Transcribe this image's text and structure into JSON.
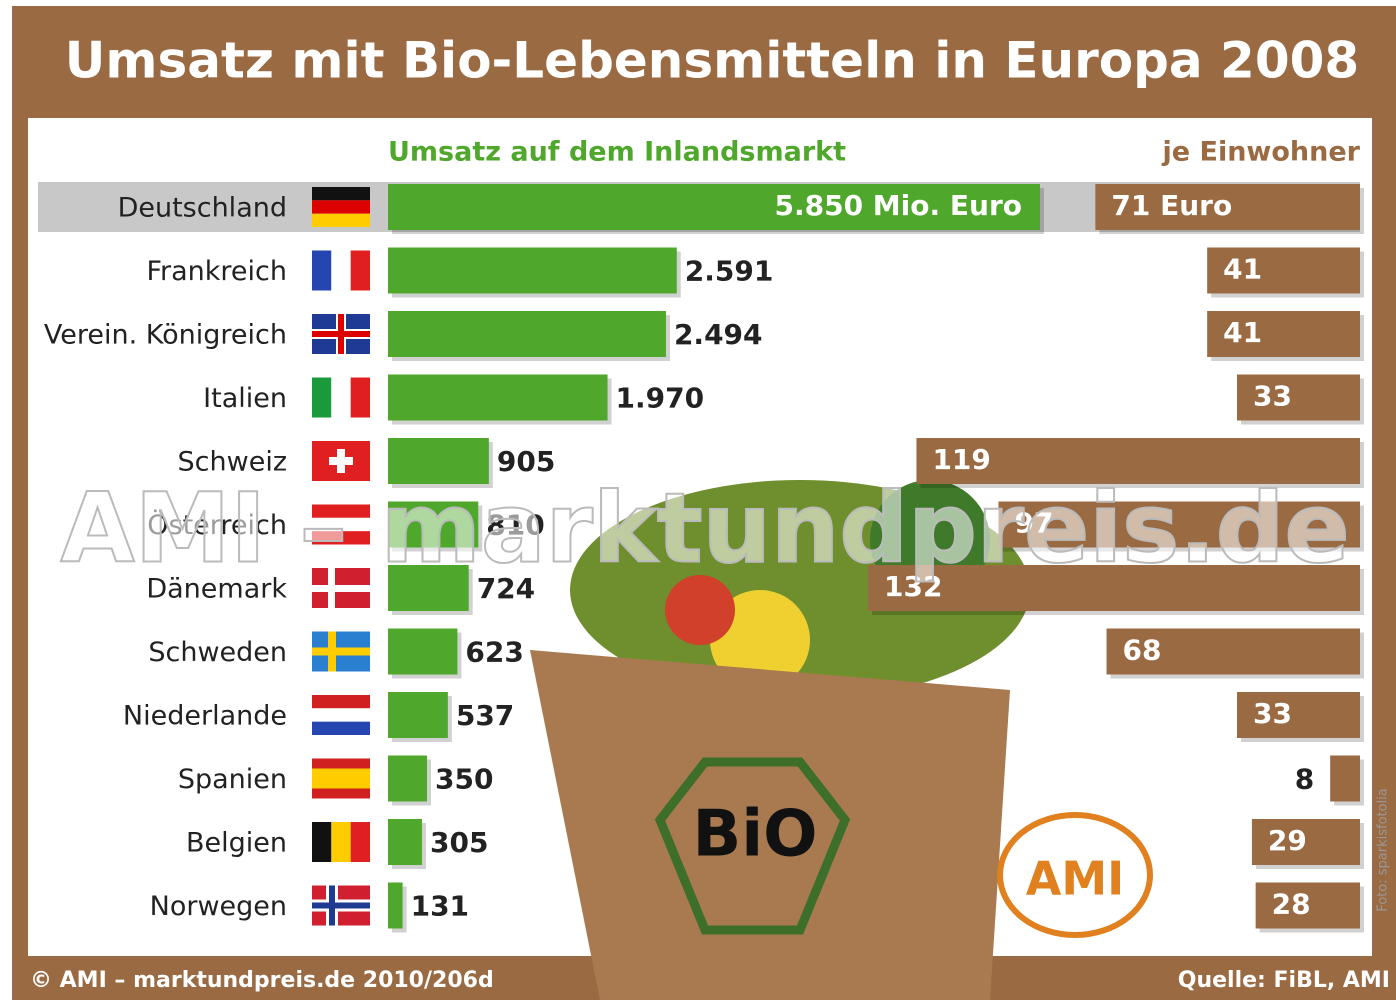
{
  "title": "Umsatz mit Bio-Lebensmitteln in Europa 2008",
  "chart_data": {
    "type": "bar",
    "categories": [
      "Deutschland",
      "Frankreich",
      "Verein. Königreich",
      "Italien",
      "Schweiz",
      "Österreich",
      "Dänemark",
      "Schweden",
      "Niederlande",
      "Spanien",
      "Belgien",
      "Norwegen"
    ],
    "series": [
      {
        "name": "Umsatz auf dem Inlandsmarkt",
        "color": "#4fa82b",
        "values": [
          5850,
          2591,
          2494,
          1970,
          905,
          810,
          724,
          623,
          537,
          350,
          305,
          131
        ],
        "value_labels": [
          "5.850 Mio. Euro",
          "2.591",
          "2.494",
          "1.970",
          "905",
          "810",
          "724",
          "623",
          "537",
          "350",
          "305",
          "131"
        ]
      },
      {
        "name": "je Einwohner",
        "color": "#9a6a42",
        "values": [
          71,
          41,
          41,
          33,
          119,
          97,
          132,
          68,
          33,
          8,
          29,
          28
        ],
        "value_labels": [
          "71 Euro",
          "41",
          "41",
          "33",
          "119",
          "97",
          "132",
          "68",
          "33",
          "8",
          "29",
          "28"
        ]
      }
    ]
  },
  "watermark": "AMI – marktundpreis.de",
  "logos": [
    "BiO",
    "AMI"
  ],
  "photo_credit": "Foto: sparkisfotolia",
  "footer": {
    "left": "© AMI – marktundpreis.de 2010/206d",
    "right": "Quelle: FiBL, AMI"
  }
}
